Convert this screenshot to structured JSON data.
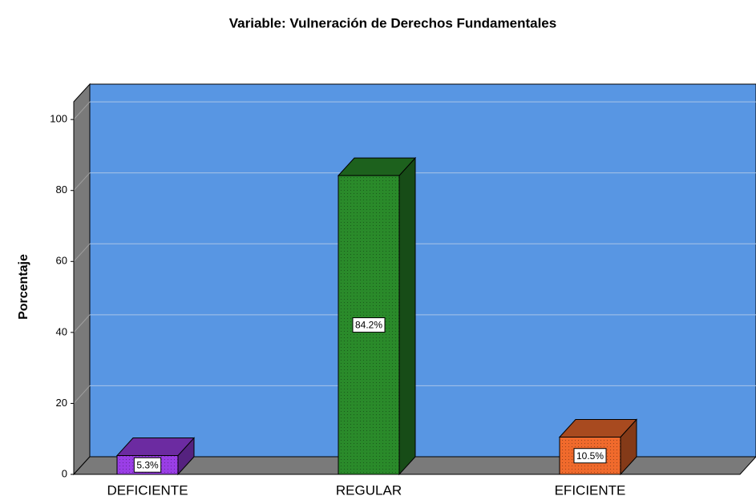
{
  "chart_data": {
    "type": "bar3d",
    "title": "Variable: Vulneración de Derechos Fundamentales",
    "ylabel": "Porcentaje",
    "categories": [
      "DEFICIENTE",
      "REGULAR",
      "EFICIENTE"
    ],
    "values": [
      5.3,
      84.2,
      10.5
    ],
    "value_labels": [
      "5.3%",
      "84.2%",
      "10.5%"
    ],
    "colors": [
      "#9a3ee6",
      "#2a8a2a",
      "#f06a2c"
    ],
    "ylim": [
      0,
      105
    ],
    "yticks": [
      0,
      20,
      40,
      60,
      80,
      100
    ],
    "grid": true
  }
}
